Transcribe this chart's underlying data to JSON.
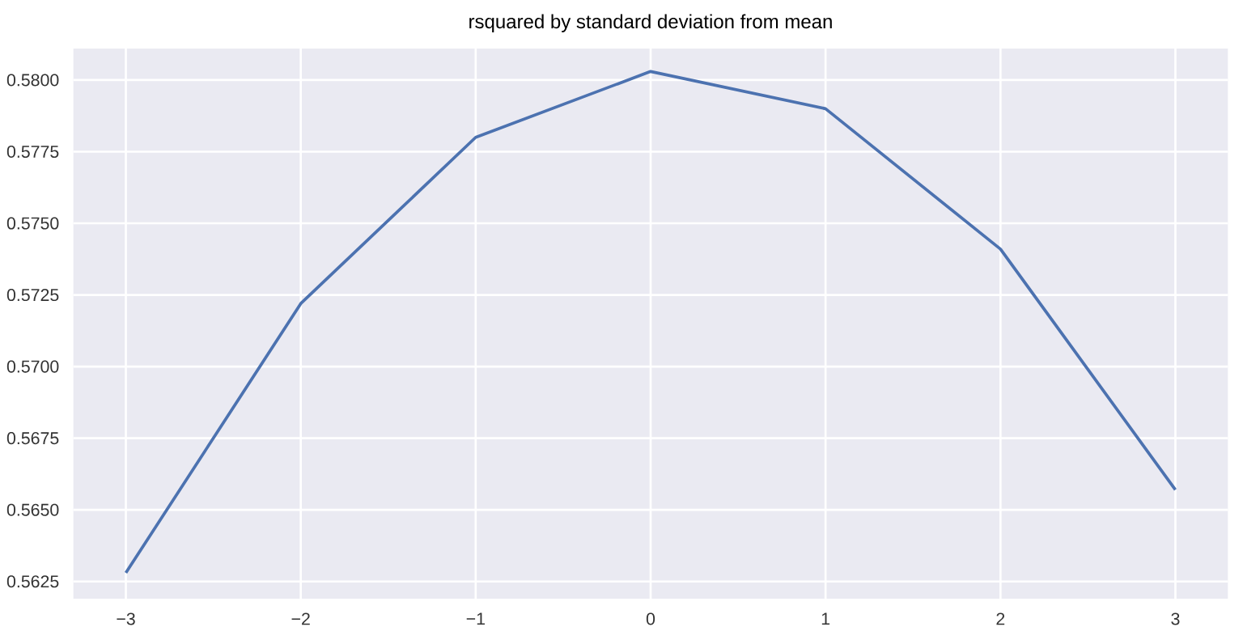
{
  "chart_data": {
    "type": "line",
    "title": "rsquared by standard deviation from mean",
    "x": [
      -3,
      -2,
      -1,
      0,
      1,
      2,
      3
    ],
    "series": [
      {
        "color": "#4c72b0",
        "values": [
          0.5628,
          0.5722,
          0.578,
          0.5803,
          0.579,
          0.5741,
          0.5657
        ]
      }
    ],
    "xlim": [
      -3.3,
      3.3
    ],
    "ylim": [
      0.5619,
      0.5811
    ],
    "xticks": [
      {
        "value": -3,
        "label": "−3"
      },
      {
        "value": -2,
        "label": "−2"
      },
      {
        "value": -1,
        "label": "−1"
      },
      0,
      1,
      2,
      3
    ],
    "yticks": [
      0.5625,
      {
        "value": 0.565,
        "label": "0.5650"
      },
      0.5675,
      {
        "value": 0.57,
        "label": "0.5700"
      },
      0.5725,
      {
        "value": 0.575,
        "label": "0.5750"
      },
      0.5775,
      {
        "value": 0.58,
        "label": "0.5800"
      }
    ],
    "grid": true,
    "marker": "none",
    "line_style": "solid"
  }
}
